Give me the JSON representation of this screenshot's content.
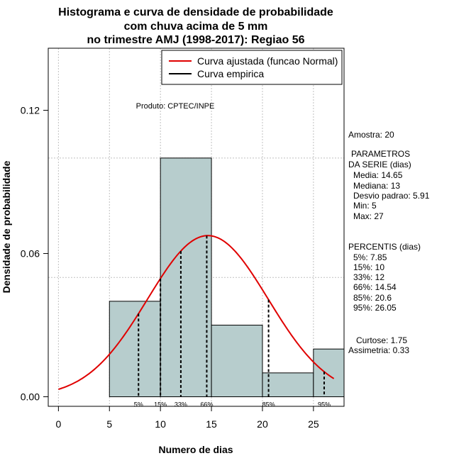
{
  "chart_data": {
    "type": "histogram",
    "title_lines": [
      "Histograma e curva de densidade de probabilidade",
      "com chuva acima de 5 mm",
      "no trimestre AMJ (1998-2017): Regiao 56"
    ],
    "xlabel": "Numero de dias",
    "ylabel": "Densidade de probabilidade",
    "xlim": [
      -1,
      28
    ],
    "ylim": [
      -0.004,
      0.146
    ],
    "xticks": [
      0,
      5,
      10,
      15,
      20,
      25
    ],
    "yticks": [
      0.0,
      0.06,
      0.12
    ],
    "ytick_labels": [
      "0.00",
      "0.06",
      "0.12"
    ],
    "grid_x": [
      0,
      5,
      10,
      15,
      20,
      25
    ],
    "grid_y": [
      0.05,
      0.1
    ],
    "bins": [
      {
        "start": 5,
        "end": 10,
        "density": 0.04
      },
      {
        "start": 10,
        "end": 15,
        "density": 0.1
      },
      {
        "start": 15,
        "end": 20,
        "density": 0.03
      },
      {
        "start": 20,
        "end": 25,
        "density": 0.01
      },
      {
        "start": 25,
        "end": 28,
        "density": 0.02
      }
    ],
    "normal_fit": {
      "mean": 14.65,
      "sd": 5.91,
      "x_from": 0,
      "x_to": 27
    },
    "percentile_lines": [
      {
        "label": "5%",
        "x": 7.85
      },
      {
        "label": "15%",
        "x": 10
      },
      {
        "label": "33%",
        "x": 12
      },
      {
        "label": "66%",
        "x": 14.54
      },
      {
        "label": "85%",
        "x": 20.6
      },
      {
        "label": "95%",
        "x": 26.05
      }
    ],
    "legend": {
      "position": "top-right",
      "entries": [
        {
          "label": "Curva ajustada (funcao Normal)",
          "color": "#e00000"
        },
        {
          "label": "Curva empirica",
          "color": "#000000"
        }
      ]
    },
    "annotation": "Produto: CPTEC/INPE",
    "colors": {
      "bar_fill": "#b7cdcd",
      "curve": "#e00000",
      "grid": "#c0c0c0"
    }
  },
  "side_stats": {
    "amostra": "Amostra: 20",
    "param_header1": "PARAMETROS",
    "param_header2": "DA SERIE (dias)",
    "media": "Media: 14.65",
    "mediana": "Mediana: 13",
    "desvio": "Desvio padrao: 5.91",
    "min": "Min: 5",
    "max": "Max: 27",
    "perc_header": "PERCENTIS (dias)",
    "p5": "5%: 7.85",
    "p15": "15%: 10",
    "p33": "33%: 12",
    "p66": "66%: 14.54",
    "p85": "85%: 20.6",
    "p95": "95%: 26.05",
    "curtose": "Curtose: 1.75",
    "assimetria": "Assimetria: 0.33"
  }
}
